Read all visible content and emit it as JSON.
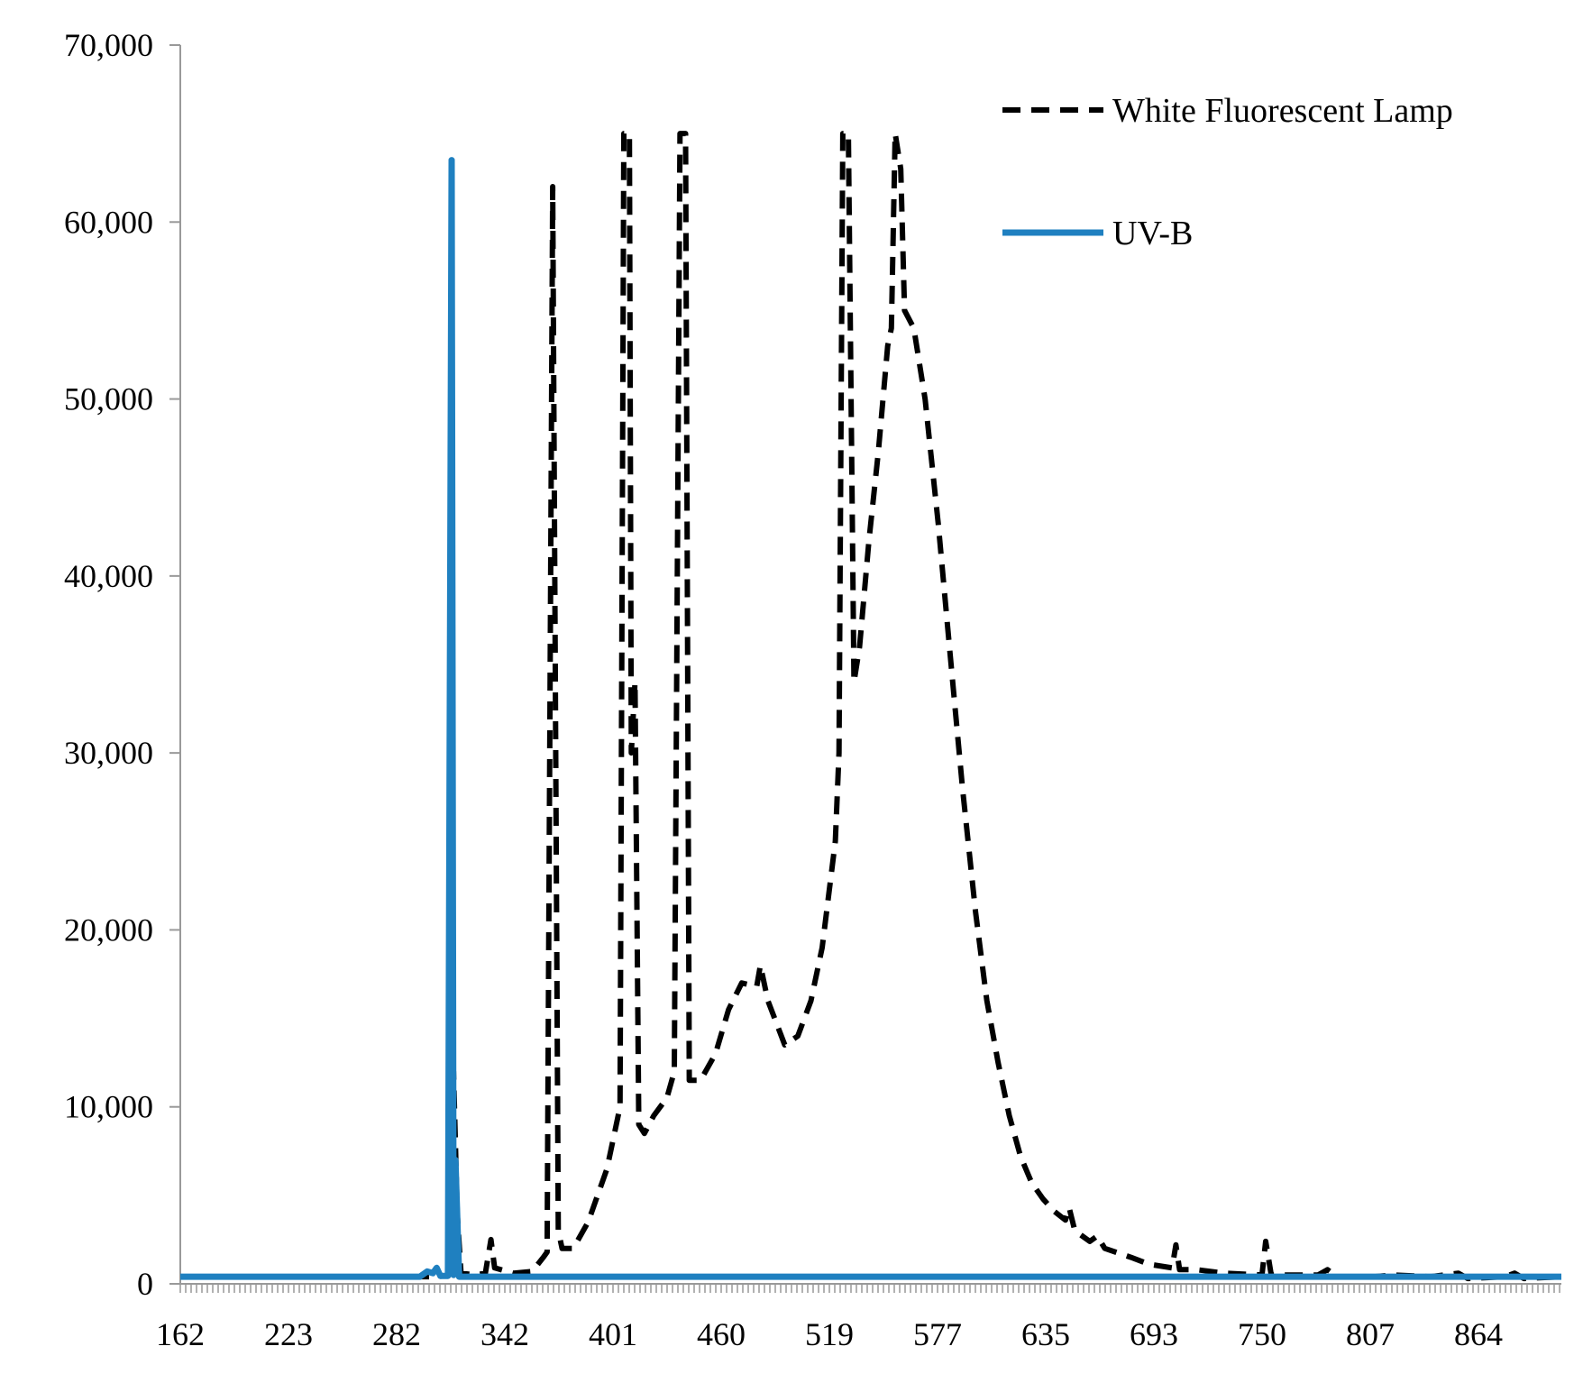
{
  "chart_data": {
    "type": "line",
    "title": "",
    "xlabel": "",
    "ylabel": "",
    "xlim": [
      162,
      900
    ],
    "ylim": [
      0,
      70000
    ],
    "x_ticks": [
      162,
      223,
      282,
      342,
      401,
      460,
      519,
      577,
      635,
      693,
      750,
      807,
      864
    ],
    "y_ticks": [
      0,
      10000,
      20000,
      30000,
      40000,
      50000,
      60000,
      70000
    ],
    "y_tick_labels": [
      "0",
      "10,000",
      "20,000",
      "30,000",
      "40,000",
      "50,000",
      "60,000",
      "70,000"
    ],
    "grid": false,
    "legend_position": "top-right",
    "series": [
      {
        "name": "White Fluorescent Lamp",
        "color": "#000000",
        "dash": "dashed",
        "points": [
          [
            162,
            400
          ],
          [
            300,
            400
          ],
          [
            305,
            500
          ],
          [
            308,
            12000
          ],
          [
            310,
            4000
          ],
          [
            312,
            600
          ],
          [
            320,
            500
          ],
          [
            325,
            600
          ],
          [
            328,
            2500
          ],
          [
            330,
            900
          ],
          [
            340,
            600
          ],
          [
            350,
            700
          ],
          [
            356,
            1500
          ],
          [
            358,
            1800
          ],
          [
            361,
            62000
          ],
          [
            364,
            3000
          ],
          [
            366,
            2000
          ],
          [
            372,
            2000
          ],
          [
            380,
            3500
          ],
          [
            390,
            6500
          ],
          [
            397,
            10000
          ],
          [
            399,
            65000
          ],
          [
            402,
            65000
          ],
          [
            403,
            30000
          ],
          [
            405,
            34000
          ],
          [
            407,
            9000
          ],
          [
            410,
            8500
          ],
          [
            415,
            9500
          ],
          [
            422,
            10500
          ],
          [
            426,
            12000
          ],
          [
            429,
            65000
          ],
          [
            432,
            65000
          ],
          [
            434,
            11500
          ],
          [
            440,
            11500
          ],
          [
            448,
            13000
          ],
          [
            455,
            15500
          ],
          [
            462,
            17000
          ],
          [
            470,
            16800
          ],
          [
            472,
            18000
          ],
          [
            476,
            16000
          ],
          [
            485,
            13500
          ],
          [
            492,
            14000
          ],
          [
            499,
            16000
          ],
          [
            505,
            19000
          ],
          [
            512,
            25000
          ],
          [
            514,
            30000
          ],
          [
            516,
            65000
          ],
          [
            519,
            65000
          ],
          [
            522,
            34000
          ],
          [
            525,
            36000
          ],
          [
            530,
            42000
          ],
          [
            535,
            47000
          ],
          [
            540,
            53000
          ],
          [
            542,
            54000
          ],
          [
            544,
            65000
          ],
          [
            547,
            63000
          ],
          [
            549,
            55000
          ],
          [
            554,
            54000
          ],
          [
            560,
            50000
          ],
          [
            567,
            43000
          ],
          [
            573,
            36000
          ],
          [
            580,
            28000
          ],
          [
            587,
            21000
          ],
          [
            593,
            16000
          ],
          [
            599,
            12500
          ],
          [
            605,
            9500
          ],
          [
            611,
            7200
          ],
          [
            617,
            5700
          ],
          [
            623,
            4800
          ],
          [
            629,
            4100
          ],
          [
            635,
            3600
          ],
          [
            637,
            4300
          ],
          [
            640,
            3000
          ],
          [
            648,
            2400
          ],
          [
            652,
            2700
          ],
          [
            656,
            2000
          ],
          [
            670,
            1500
          ],
          [
            680,
            1100
          ],
          [
            692,
            900
          ],
          [
            694,
            2200
          ],
          [
            696,
            800
          ],
          [
            705,
            800
          ],
          [
            720,
            600
          ],
          [
            740,
            500
          ],
          [
            742,
            2400
          ],
          [
            745,
            500
          ],
          [
            760,
            500
          ],
          [
            770,
            500
          ],
          [
            775,
            800
          ],
          [
            780,
            400
          ],
          [
            800,
            400
          ],
          [
            810,
            500
          ],
          [
            830,
            400
          ],
          [
            845,
            600
          ],
          [
            850,
            300
          ],
          [
            870,
            400
          ],
          [
            875,
            600
          ],
          [
            880,
            300
          ],
          [
            900,
            400
          ]
        ]
      },
      {
        "name": "UV-B",
        "color": "#1f80c0",
        "dash": "solid",
        "points": [
          [
            162,
            400
          ],
          [
            290,
            400
          ],
          [
            294,
            700
          ],
          [
            297,
            600
          ],
          [
            299,
            900
          ],
          [
            301,
            450
          ],
          [
            305,
            450
          ],
          [
            307,
            63500
          ],
          [
            308,
            500
          ],
          [
            309,
            7000
          ],
          [
            311,
            400
          ],
          [
            320,
            400
          ],
          [
            900,
            400
          ]
        ]
      }
    ]
  }
}
